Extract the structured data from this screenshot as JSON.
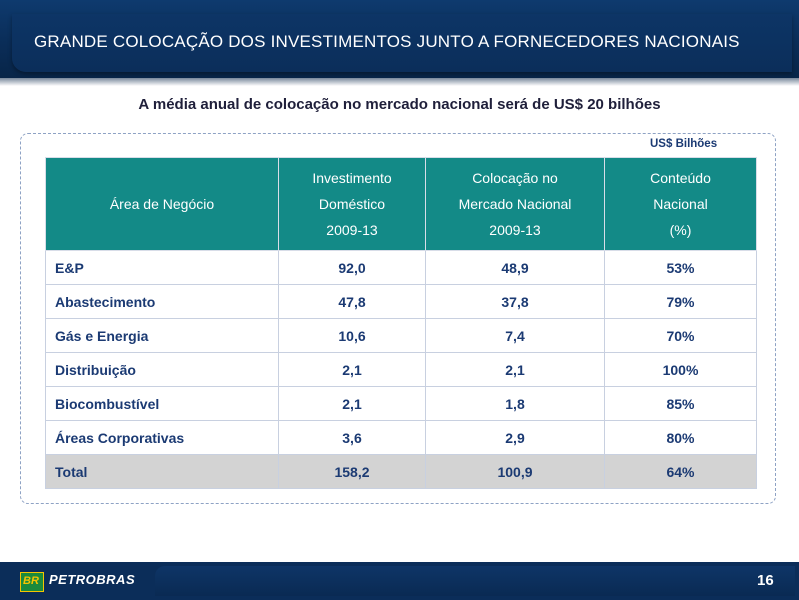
{
  "header": {
    "title": "GRANDE COLOCAÇÃO DOS INVESTIMENTOS JUNTO A FORNECEDORES NACIONAIS"
  },
  "subtitle": "A média anual de colocação no mercado nacional será de US$ 20 bilhões",
  "unit_label": "US$ Bilhões",
  "table": {
    "headers": [
      [
        "Área de Negócio"
      ],
      [
        "Investimento",
        "Doméstico",
        "2009-13"
      ],
      [
        "Colocação no",
        "Mercado Nacional",
        "2009-13"
      ],
      [
        "Conteúdo",
        "Nacional",
        "(%)"
      ]
    ],
    "rows": [
      {
        "area": "E&P",
        "investimento": "92,0",
        "colocacao": "48,9",
        "conteudo": "53%"
      },
      {
        "area": "Abastecimento",
        "investimento": "47,8",
        "colocacao": "37,8",
        "conteudo": "79%"
      },
      {
        "area": "Gás e Energia",
        "investimento": "10,6",
        "colocacao": "7,4",
        "conteudo": "70%"
      },
      {
        "area": "Distribuição",
        "investimento": "2,1",
        "colocacao": "2,1",
        "conteudo": "100%"
      },
      {
        "area": "Biocombustível",
        "investimento": "2,1",
        "colocacao": "1,8",
        "conteudo": "85%"
      },
      {
        "area": "Áreas Corporativas",
        "investimento": "3,6",
        "colocacao": "2,9",
        "conteudo": "80%"
      }
    ],
    "total": {
      "area": "Total",
      "investimento": "158,2",
      "colocacao": "100,9",
      "conteudo": "64%"
    }
  },
  "footer": {
    "logo_mark": "BR",
    "brand": "PETROBRAS",
    "page_number": "16"
  },
  "colors": {
    "header_navy": "#0b2e5a",
    "table_header_teal": "#138a87",
    "text_navy": "#1b3a73",
    "total_row_gray": "#d3d3d3"
  }
}
